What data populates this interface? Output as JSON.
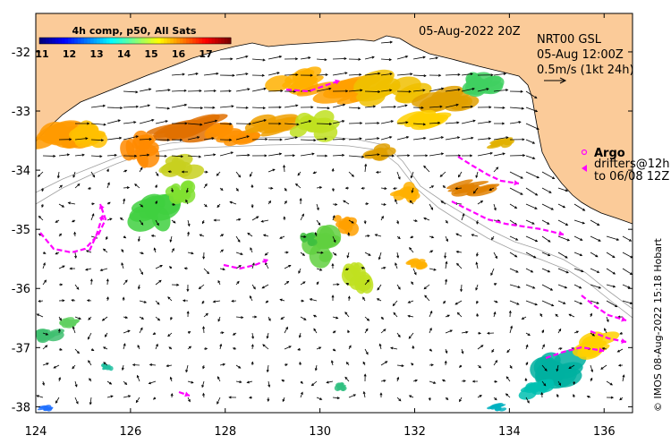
{
  "header": {
    "date_label": "05-Aug-2022 20Z",
    "product": "NRT00 GSL",
    "analysis_time": "05-Aug 12:00Z",
    "scale_label": "0.5m/s (1kt 24h)"
  },
  "colorbar": {
    "title": "4h comp, p50, All Sats",
    "ticks": [
      "11",
      "12",
      "13",
      "14",
      "15",
      "16",
      "17"
    ],
    "colors": [
      "#00007f",
      "#0000ff",
      "#007fff",
      "#00ffff",
      "#7fff7f",
      "#ffff00",
      "#ff7f00",
      "#ff0000",
      "#7f0000"
    ]
  },
  "legend": {
    "argo_label": "Argo",
    "drifters_label": "drifters@12h",
    "drifters_to": "to 06/08 12Z"
  },
  "credit": "© IMOS 08-Aug-2022 15:18 Hobart",
  "axes": {
    "x_ticks": [
      "124",
      "126",
      "128",
      "130",
      "132",
      "134",
      "136"
    ],
    "y_ticks": [
      "-32",
      "-33",
      "-34",
      "-35",
      "-36",
      "-37",
      "-38"
    ],
    "lon_range": [
      124,
      136.6
    ],
    "lat_range": [
      -38.1,
      -31.35
    ]
  },
  "colors": {
    "land": "#fbcb99",
    "drifter": "#ff00ff",
    "arrow": "#000000",
    "isobath": "#a0a0a0"
  }
}
